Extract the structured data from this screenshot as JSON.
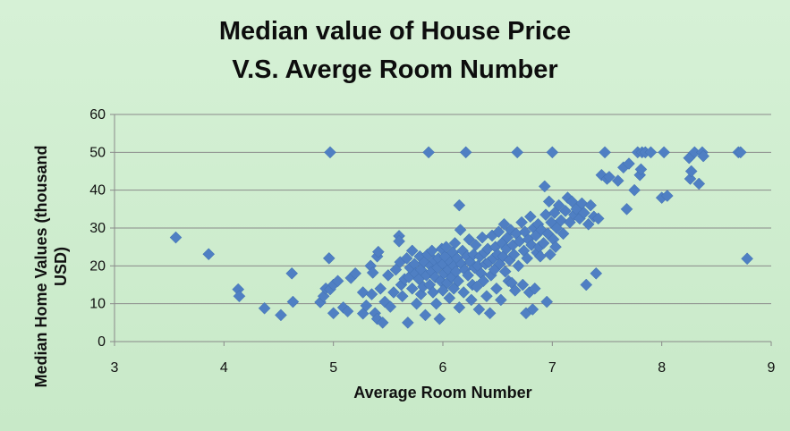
{
  "chart_data": {
    "type": "scatter",
    "title_line1": "Median value of House Price",
    "title_line2": "V.S. Averge Room Number",
    "xlabel": "Average Room Number",
    "ylabel_line1": "Median Home Values (thousand",
    "ylabel_line2": "USD)",
    "xlim": [
      3,
      9
    ],
    "ylim": [
      0,
      60
    ],
    "x_ticks": [
      "3",
      "4",
      "5",
      "6",
      "7",
      "8",
      "9"
    ],
    "y_ticks": [
      "0",
      "10",
      "20",
      "30",
      "40",
      "50",
      "60"
    ],
    "grid": "horizontal",
    "legend": "none",
    "marker": "diamond",
    "colors": {
      "marker": "#4f7fc3",
      "background": "#cdeccd",
      "grid": "#8a8a8a"
    },
    "points": [
      [
        3.56,
        27.5
      ],
      [
        3.86,
        23.1
      ],
      [
        4.13,
        13.8
      ],
      [
        4.14,
        12.0
      ],
      [
        4.37,
        8.8
      ],
      [
        4.52,
        7.0
      ],
      [
        4.62,
        18.0
      ],
      [
        4.63,
        10.5
      ],
      [
        4.88,
        10.4
      ],
      [
        4.91,
        12.0
      ],
      [
        4.93,
        14.0
      ],
      [
        4.96,
        22.0
      ],
      [
        4.97,
        50.0
      ],
      [
        4.97,
        13.8
      ],
      [
        5.0,
        15.0
      ],
      [
        5.0,
        7.5
      ],
      [
        5.04,
        16.0
      ],
      [
        5.09,
        9.0
      ],
      [
        5.13,
        8.0
      ],
      [
        5.16,
        16.8
      ],
      [
        5.2,
        18.0
      ],
      [
        5.27,
        7.4
      ],
      [
        5.27,
        13.0
      ],
      [
        5.3,
        9.5
      ],
      [
        5.34,
        20.0
      ],
      [
        5.35,
        12.5
      ],
      [
        5.36,
        18.2
      ],
      [
        5.38,
        7.5
      ],
      [
        5.4,
        6.0
      ],
      [
        5.4,
        22.5
      ],
      [
        5.41,
        23.7
      ],
      [
        5.43,
        14.0
      ],
      [
        5.45,
        5.0
      ],
      [
        5.47,
        10.5
      ],
      [
        5.5,
        17.5
      ],
      [
        5.52,
        9.2
      ],
      [
        5.55,
        13.0
      ],
      [
        5.57,
        19.0
      ],
      [
        5.6,
        27.9
      ],
      [
        5.6,
        26.5
      ],
      [
        5.61,
        21.0
      ],
      [
        5.62,
        15.0
      ],
      [
        5.63,
        12.0
      ],
      [
        5.65,
        16.5
      ],
      [
        5.67,
        22.0
      ],
      [
        5.68,
        5.0
      ],
      [
        5.69,
        17.0
      ],
      [
        5.7,
        19.5
      ],
      [
        5.72,
        14.0
      ],
      [
        5.72,
        24.0
      ],
      [
        5.74,
        20.5
      ],
      [
        5.75,
        18.0
      ],
      [
        5.76,
        10.0
      ],
      [
        5.78,
        16.5
      ],
      [
        5.79,
        22.5
      ],
      [
        5.8,
        12.5
      ],
      [
        5.8,
        19.0
      ],
      [
        5.82,
        14.5
      ],
      [
        5.83,
        21.0
      ],
      [
        5.84,
        7.0
      ],
      [
        5.85,
        17.5
      ],
      [
        5.86,
        23.0
      ],
      [
        5.87,
        50.0
      ],
      [
        5.88,
        15.0
      ],
      [
        5.89,
        20.0
      ],
      [
        5.9,
        18.5
      ],
      [
        5.9,
        24.0
      ],
      [
        5.91,
        13.0
      ],
      [
        5.92,
        21.5
      ],
      [
        5.93,
        17.0
      ],
      [
        5.94,
        10.0
      ],
      [
        5.95,
        19.5
      ],
      [
        5.96,
        22.0
      ],
      [
        5.97,
        6.0
      ],
      [
        5.98,
        16.0
      ],
      [
        5.99,
        24.5
      ],
      [
        6.0,
        20.5
      ],
      [
        6.0,
        13.5
      ],
      [
        6.01,
        18.0
      ],
      [
        6.02,
        22.5
      ],
      [
        6.03,
        25.0
      ],
      [
        6.04,
        15.5
      ],
      [
        6.05,
        19.0
      ],
      [
        6.06,
        11.5
      ],
      [
        6.07,
        21.0
      ],
      [
        6.08,
        17.0
      ],
      [
        6.09,
        23.5
      ],
      [
        6.1,
        20.0
      ],
      [
        6.1,
        14.0
      ],
      [
        6.11,
        26.0
      ],
      [
        6.12,
        18.5
      ],
      [
        6.13,
        22.0
      ],
      [
        6.14,
        16.0
      ],
      [
        6.15,
        9.0
      ],
      [
        6.15,
        36.0
      ],
      [
        6.16,
        29.5
      ],
      [
        6.17,
        20.5
      ],
      [
        6.18,
        24.0
      ],
      [
        6.19,
        13.0
      ],
      [
        6.2,
        19.0
      ],
      [
        6.21,
        50.0
      ],
      [
        6.22,
        22.5
      ],
      [
        6.23,
        17.5
      ],
      [
        6.24,
        27.0
      ],
      [
        6.25,
        21.0
      ],
      [
        6.26,
        11.0
      ],
      [
        6.27,
        15.0
      ],
      [
        6.28,
        23.0
      ],
      [
        6.29,
        19.5
      ],
      [
        6.3,
        25.5
      ],
      [
        6.31,
        14.5
      ],
      [
        6.32,
        20.0
      ],
      [
        6.33,
        8.5
      ],
      [
        6.34,
        22.5
      ],
      [
        6.35,
        18.0
      ],
      [
        6.36,
        27.5
      ],
      [
        6.37,
        16.0
      ],
      [
        6.38,
        23.5
      ],
      [
        6.39,
        20.5
      ],
      [
        6.4,
        12.0
      ],
      [
        6.41,
        24.5
      ],
      [
        6.42,
        21.0
      ],
      [
        6.43,
        7.5
      ],
      [
        6.44,
        17.5
      ],
      [
        6.45,
        28.0
      ],
      [
        6.46,
        22.0
      ],
      [
        6.47,
        19.0
      ],
      [
        6.48,
        25.0
      ],
      [
        6.49,
        14.0
      ],
      [
        6.5,
        23.0
      ],
      [
        6.51,
        29.0
      ],
      [
        6.52,
        20.5
      ],
      [
        6.53,
        11.0
      ],
      [
        6.54,
        26.0
      ],
      [
        6.55,
        22.5
      ],
      [
        6.56,
        31.0
      ],
      [
        6.57,
        18.5
      ],
      [
        6.58,
        24.5
      ],
      [
        6.59,
        27.5
      ],
      [
        6.6,
        16.0
      ],
      [
        6.61,
        21.5
      ],
      [
        6.62,
        29.5
      ],
      [
        6.63,
        15.5
      ],
      [
        6.64,
        25.5
      ],
      [
        6.65,
        23.0
      ],
      [
        6.66,
        13.5
      ],
      [
        6.67,
        28.5
      ],
      [
        6.68,
        50.0
      ],
      [
        6.69,
        20.0
      ],
      [
        6.7,
        26.5
      ],
      [
        6.72,
        31.5
      ],
      [
        6.73,
        15.0
      ],
      [
        6.74,
        24.0
      ],
      [
        6.75,
        29.0
      ],
      [
        6.76,
        7.5
      ],
      [
        6.77,
        22.0
      ],
      [
        6.78,
        27.0
      ],
      [
        6.79,
        13.0
      ],
      [
        6.8,
        33.0
      ],
      [
        6.81,
        25.5
      ],
      [
        6.82,
        8.5
      ],
      [
        6.83,
        30.0
      ],
      [
        6.84,
        14.0
      ],
      [
        6.85,
        28.0
      ],
      [
        6.86,
        23.5
      ],
      [
        6.87,
        31.0
      ],
      [
        6.88,
        25.0
      ],
      [
        6.89,
        22.5
      ],
      [
        6.9,
        29.5
      ],
      [
        6.92,
        26.0
      ],
      [
        6.93,
        41.0
      ],
      [
        6.94,
        33.5
      ],
      [
        6.95,
        10.5
      ],
      [
        6.96,
        28.5
      ],
      [
        6.97,
        37.0
      ],
      [
        6.98,
        23.0
      ],
      [
        6.99,
        31.5
      ],
      [
        7.0,
        50.0
      ],
      [
        7.01,
        27.0
      ],
      [
        7.02,
        34.0
      ],
      [
        7.03,
        25.0
      ],
      [
        7.04,
        30.0
      ],
      [
        7.06,
        36.0
      ],
      [
        7.08,
        32.0
      ],
      [
        7.1,
        28.5
      ],
      [
        7.12,
        34.5
      ],
      [
        7.14,
        38.0
      ],
      [
        7.16,
        31.5
      ],
      [
        7.18,
        37.0
      ],
      [
        7.2,
        33.5
      ],
      [
        7.22,
        35.0
      ],
      [
        7.25,
        32.5
      ],
      [
        7.27,
        36.5
      ],
      [
        7.29,
        34.0
      ],
      [
        7.31,
        15.0
      ],
      [
        7.33,
        31.0
      ],
      [
        7.35,
        36.0
      ],
      [
        7.38,
        33.0
      ],
      [
        7.4,
        18.0
      ],
      [
        7.42,
        32.5
      ],
      [
        7.45,
        44.0
      ],
      [
        7.48,
        50.0
      ],
      [
        7.5,
        43.0
      ],
      [
        7.52,
        43.5
      ],
      [
        7.6,
        42.5
      ],
      [
        7.65,
        46.0
      ],
      [
        7.68,
        35.0
      ],
      [
        7.7,
        47.0
      ],
      [
        7.75,
        40.0
      ],
      [
        7.78,
        50.0
      ],
      [
        7.8,
        44.0
      ],
      [
        7.81,
        45.5
      ],
      [
        7.82,
        50.0
      ],
      [
        7.85,
        50.0
      ],
      [
        7.9,
        50.0
      ],
      [
        8.0,
        38.0
      ],
      [
        8.02,
        50.0
      ],
      [
        8.05,
        38.5
      ],
      [
        8.25,
        48.5
      ],
      [
        8.26,
        43.0
      ],
      [
        8.27,
        45.0
      ],
      [
        8.3,
        50.0
      ],
      [
        8.34,
        41.7
      ],
      [
        8.37,
        50.0
      ],
      [
        8.38,
        49.0
      ],
      [
        8.7,
        50.0
      ],
      [
        8.72,
        50.0
      ],
      [
        8.78,
        21.9
      ]
    ]
  }
}
